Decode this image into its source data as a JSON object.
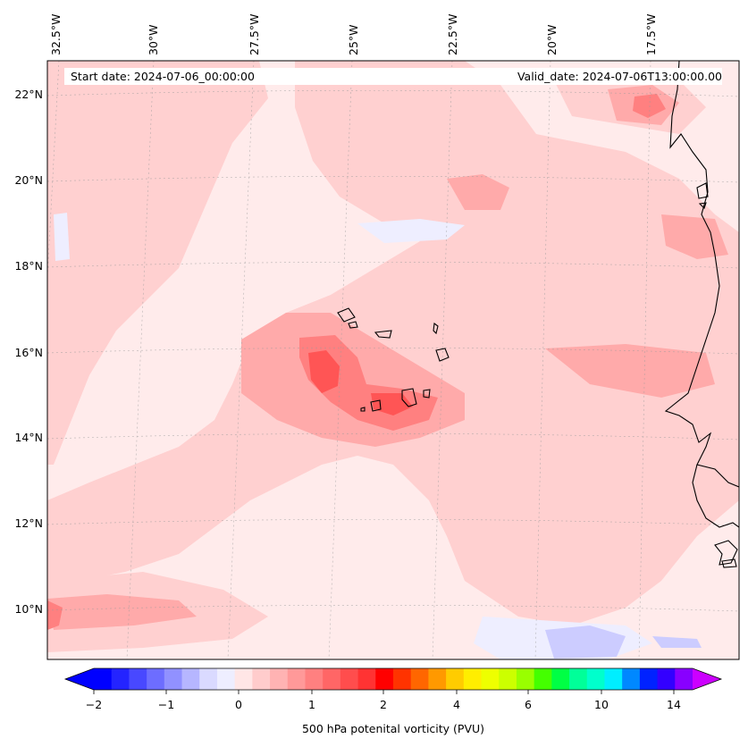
{
  "map": {
    "lon_labels": [
      "32.5°W",
      "30°W",
      "27.5°W",
      "25°W",
      "22.5°W",
      "20°W",
      "17.5°W"
    ],
    "lat_labels": [
      "22°N",
      "20°N",
      "18°N",
      "16°N",
      "14°N",
      "12°N",
      "10°N"
    ],
    "start_date": "Start date: 2024-07-06_00:00:00",
    "valid_date": "Valid_date: 2024-07-06T13:00:00.00",
    "field_colors": {
      "background": "#ffebeb",
      "light": "#ffd0d0",
      "medium": "#ffaaaa",
      "strong": "#ff8080",
      "peak": "#ff5555",
      "near_zero": "#eeeeff",
      "negative": "#ccccff"
    }
  },
  "colorbar": {
    "title": "500 hPa potenital vorticity (PVU)",
    "tick_labels": [
      "−2",
      "−1",
      "0",
      "1",
      "2",
      "4",
      "6",
      "10",
      "14"
    ],
    "colors": [
      "#0000ff",
      "#2424ff",
      "#4848ff",
      "#6d6dff",
      "#9191ff",
      "#b6b6ff",
      "#dadaff",
      "#eeeeff",
      "#ffe6e6",
      "#ffcccc",
      "#ffb3b3",
      "#ff9999",
      "#ff8080",
      "#ff6666",
      "#ff4d4d",
      "#ff3333",
      "#ff0000",
      "#ff3300",
      "#ff6600",
      "#ff9900",
      "#ffcc00",
      "#ffee00",
      "#eeff00",
      "#ccff00",
      "#99ff00",
      "#44ff00",
      "#00ff44",
      "#00ff99",
      "#00ffcc",
      "#00eeff",
      "#0088ff",
      "#0022ff",
      "#3300ff",
      "#8800ff"
    ],
    "extend_low_color": "#0000ff",
    "extend_high_color": "#cc00ff"
  }
}
